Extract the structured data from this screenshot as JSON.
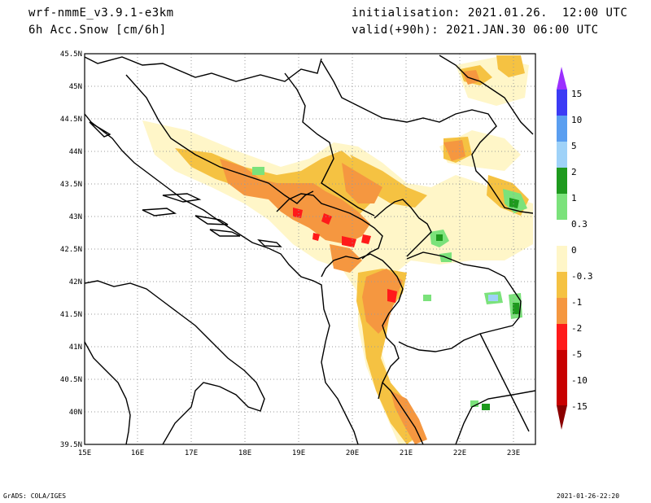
{
  "header": {
    "model": "wrf-nmmE_v3.9.1-e3km",
    "field": "6h Acc.Snow [cm/6h]",
    "init": "initialisation: 2021.01.26.  12:00 UTC",
    "valid": "valid(+90h): 2021.JAN.30 06:00 UTC"
  },
  "axes": {
    "lat_labels": [
      "45.5N",
      "45N",
      "44.5N",
      "44N",
      "43.5N",
      "43N",
      "42.5N",
      "42N",
      "41.5N",
      "41N",
      "40.5N",
      "40N",
      "39.5N"
    ],
    "lon_labels": [
      "15E",
      "16E",
      "17E",
      "18E",
      "19E",
      "20E",
      "21E",
      "22E",
      "23E"
    ]
  },
  "colorbar": {
    "labels": [
      "15",
      "10",
      "5",
      "2",
      "1",
      "0.3",
      "0",
      "-0.3",
      "-1",
      "-2",
      "-5",
      "-10",
      "-15"
    ],
    "colors": [
      "#9b30ff",
      "#3b3bf5",
      "#5a9ef0",
      "#9fd2f8",
      "#1e9a1e",
      "#7be27b",
      "#ffffff",
      "#fff6c8",
      "#f5c242",
      "#f59740",
      "#ff1a1a",
      "#c80000",
      "#8b0000"
    ]
  },
  "footer": {
    "left": "GrADS: COLA/IGES",
    "right": "2021-01-26-22:20"
  }
}
